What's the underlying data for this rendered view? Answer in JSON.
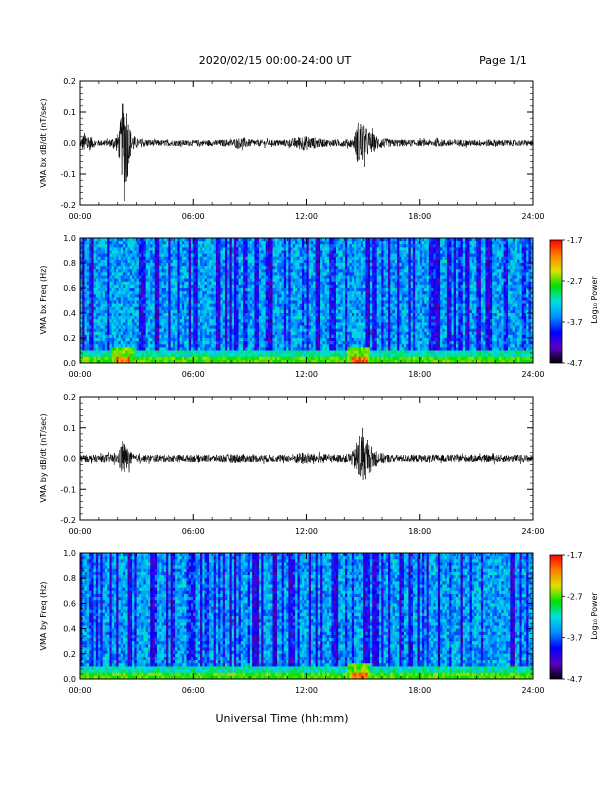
{
  "header": {
    "title": "2020/02/15  00:00-24:00 UT",
    "page": "Page 1/1"
  },
  "footer": {
    "xlabel": "Universal Time (hh:mm)"
  },
  "x_ticks": [
    "00:00",
    "06:00",
    "12:00",
    "18:00",
    "24:00"
  ],
  "colormap": {
    "stops": [
      "#000000",
      "#5a00c8",
      "#0000ff",
      "#0090ff",
      "#00e0e0",
      "#00e000",
      "#e0e000",
      "#ff7f00",
      "#ff0000"
    ]
  },
  "chart_data": [
    {
      "type": "line",
      "ylabel": "VMA bx dB/dt (nT/sec)",
      "xlim": [
        0,
        24
      ],
      "ylim": [
        -0.2,
        0.2
      ],
      "yticks": [
        "-0.2",
        "-0.1",
        "0.0",
        "0.1",
        "0.2"
      ],
      "series": [
        {
          "x": [
            0.0,
            0.3,
            0.5,
            0.8,
            1.0,
            1.5,
            2.0,
            2.2,
            2.35,
            2.5,
            2.6,
            2.8,
            3.0,
            4.0,
            5.0,
            6.0,
            7.0,
            8.0,
            8.6,
            9.0,
            10.0,
            11.0,
            11.4,
            11.8,
            12.3,
            13.0,
            14.0,
            14.5,
            14.8,
            15.0,
            15.3,
            15.8,
            16.5,
            17.0,
            18.0,
            19.0,
            20.0,
            21.0,
            22.0,
            23.0,
            24.0
          ],
          "amplitude": [
            0.01,
            0.04,
            0.025,
            0.012,
            0.01,
            0.01,
            0.03,
            0.09,
            0.2,
            0.12,
            0.06,
            0.03,
            0.015,
            0.01,
            0.01,
            0.01,
            0.01,
            0.012,
            0.02,
            0.012,
            0.01,
            0.012,
            0.018,
            0.025,
            0.02,
            0.012,
            0.012,
            0.015,
            0.085,
            0.06,
            0.04,
            0.02,
            0.012,
            0.012,
            0.01,
            0.012,
            0.012,
            0.01,
            0.012,
            0.01,
            0.01
          ]
        }
      ]
    },
    {
      "type": "heatmap",
      "ylabel": "VMA bx Freq (Hz)",
      "xlim": [
        0,
        24
      ],
      "ylim": [
        0.0,
        1.0
      ],
      "yticks": [
        "0.0",
        "0.2",
        "0.4",
        "0.6",
        "0.8",
        "1.0"
      ],
      "colorbar": {
        "label": "Log₁₀ Power",
        "range": [
          -4.7,
          -1.7
        ],
        "ticks": [
          "-1.7",
          "-2.7",
          "-3.7",
          "-4.7"
        ]
      },
      "hotspots": [
        {
          "time": 2.3,
          "freq": 0.02
        },
        {
          "time": 14.8,
          "freq": 0.02
        }
      ]
    },
    {
      "type": "line",
      "ylabel": "VMA by dB/dt (nT/sec)",
      "xlim": [
        0,
        24
      ],
      "ylim": [
        -0.2,
        0.2
      ],
      "yticks": [
        "-0.2",
        "-0.1",
        "0.0",
        "0.1",
        "0.2"
      ],
      "series": [
        {
          "x": [
            0.0,
            1.0,
            2.0,
            2.2,
            2.3,
            2.5,
            2.8,
            3.0,
            5.0,
            7.0,
            8.5,
            9.0,
            11.0,
            11.8,
            12.5,
            14.0,
            14.5,
            14.8,
            15.0,
            15.3,
            15.8,
            16.5,
            18.0,
            20.0,
            22.0,
            24.0
          ],
          "amplitude": [
            0.012,
            0.012,
            0.015,
            0.05,
            0.06,
            0.035,
            0.015,
            0.012,
            0.012,
            0.012,
            0.015,
            0.012,
            0.012,
            0.02,
            0.015,
            0.012,
            0.025,
            0.09,
            0.08,
            0.05,
            0.02,
            0.012,
            0.012,
            0.012,
            0.012,
            0.012
          ]
        }
      ]
    },
    {
      "type": "heatmap",
      "ylabel": "VMA by Freq (Hz)",
      "xlim": [
        0,
        24
      ],
      "ylim": [
        0.0,
        1.0
      ],
      "yticks": [
        "0.0",
        "0.2",
        "0.4",
        "0.6",
        "0.8",
        "1.0"
      ],
      "colorbar": {
        "label": "Log₁₀ Power",
        "range": [
          -4.7,
          -1.7
        ],
        "ticks": [
          "-1.7",
          "-2.7",
          "-3.7",
          "-4.7"
        ]
      },
      "hotspots": [
        {
          "time": 14.8,
          "freq": 0.02
        }
      ]
    }
  ]
}
